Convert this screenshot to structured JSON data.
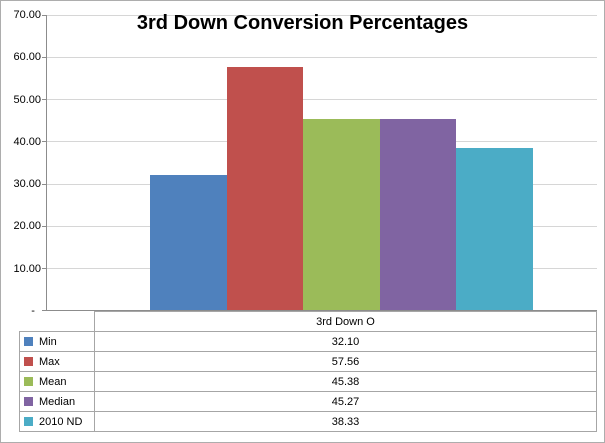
{
  "chart_data": {
    "type": "bar",
    "title": "3rd Down Conversion Percentages",
    "categories": [
      "3rd Down O"
    ],
    "series": [
      {
        "name": "Min",
        "values": [
          32.1
        ],
        "formatted": "32.10",
        "color": "#4F81BD"
      },
      {
        "name": "Max",
        "values": [
          57.56
        ],
        "formatted": "57.56",
        "color": "#C0504D"
      },
      {
        "name": "Mean",
        "values": [
          45.38
        ],
        "formatted": "45.38",
        "color": "#9BBB59"
      },
      {
        "name": "Median",
        "values": [
          45.27
        ],
        "formatted": "45.27",
        "color": "#8064A2"
      },
      {
        "name": "2010 ND",
        "values": [
          38.33
        ],
        "formatted": "38.33",
        "color": "#4BACC6"
      }
    ],
    "xlabel": "",
    "ylabel": "",
    "ylim": [
      0,
      70
    ],
    "yticks": [
      {
        "v": 70,
        "label": "70.00"
      },
      {
        "v": 60,
        "label": "60.00"
      },
      {
        "v": 50,
        "label": "50.00"
      },
      {
        "v": 40,
        "label": "40.00"
      },
      {
        "v": 30,
        "label": "30.00"
      },
      {
        "v": 20,
        "label": "20.00"
      },
      {
        "v": 10,
        "label": "10.00"
      },
      {
        "v": 0,
        "label": "-  "
      }
    ],
    "grid": true,
    "legend_position": "data-table-below-chart",
    "colors": {
      "gridline": "#d6d6d6",
      "axis": "#8c8c8c",
      "table_border": "#a6a6a6"
    }
  }
}
